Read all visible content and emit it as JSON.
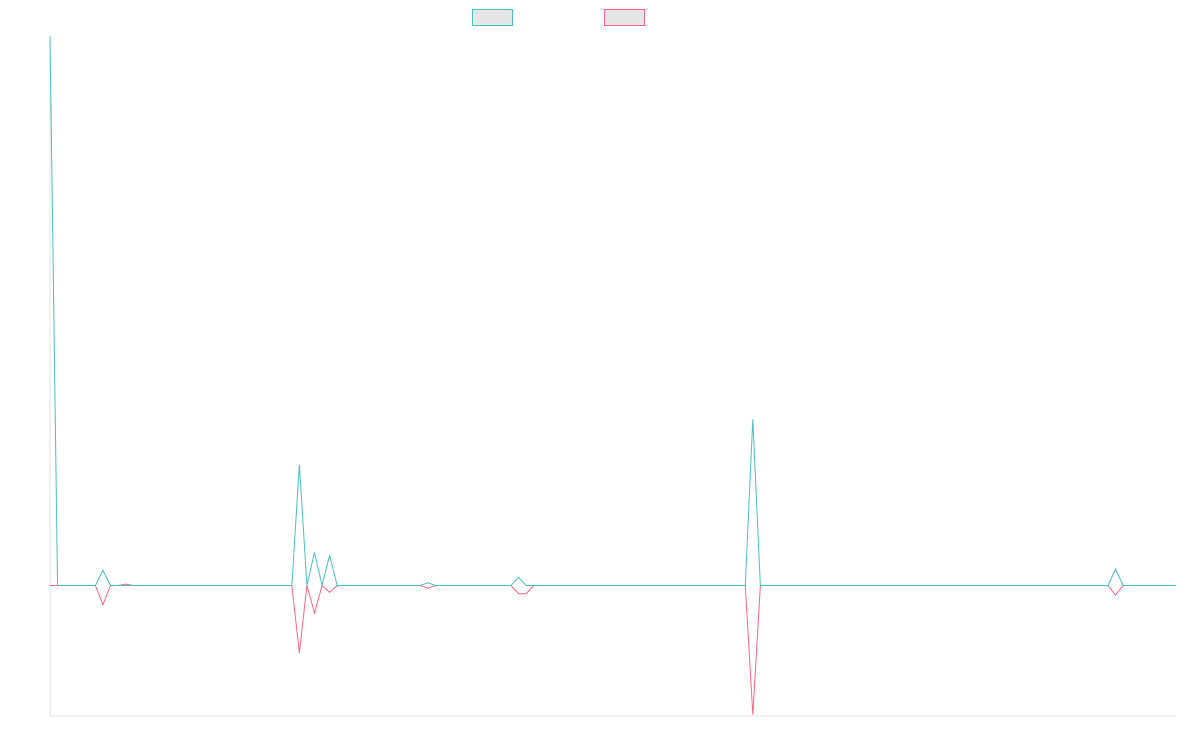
{
  "chart_data": {
    "type": "line",
    "title": "",
    "xlabel": "",
    "ylabel": "",
    "grid": false,
    "legend_position": "top-center",
    "x_count": 150,
    "ylim": [
      -95,
      400
    ],
    "series": [
      {
        "color": "#4bc0c0",
        "values": [
          400,
          0,
          0,
          0,
          0,
          0,
          0,
          11,
          0,
          0,
          0,
          0,
          0,
          0,
          0,
          0,
          0,
          0,
          0,
          0,
          0,
          0,
          0,
          0,
          0,
          0,
          0,
          0,
          0,
          0,
          0,
          0,
          0,
          88,
          0,
          24,
          0,
          22,
          0,
          0,
          0,
          0,
          0,
          0,
          0,
          0,
          0,
          0,
          0,
          0,
          2,
          0,
          0,
          0,
          0,
          0,
          0,
          0,
          0,
          0,
          0,
          0,
          6,
          0,
          0,
          0,
          0,
          0,
          0,
          0,
          0,
          0,
          0,
          0,
          0,
          0,
          0,
          0,
          0,
          0,
          0,
          0,
          0,
          0,
          0,
          0,
          0,
          0,
          0,
          0,
          0,
          0,
          0,
          121,
          0,
          0,
          0,
          0,
          0,
          0,
          0,
          0,
          0,
          0,
          0,
          0,
          0,
          0,
          0,
          0,
          0,
          0,
          0,
          0,
          0,
          0,
          0,
          0,
          0,
          0,
          0,
          0,
          0,
          0,
          0,
          0,
          0,
          0,
          0,
          0,
          0,
          0,
          0,
          0,
          0,
          0,
          0,
          0,
          0,
          0,
          0,
          12,
          0,
          0,
          0,
          0,
          0,
          0,
          0,
          0
        ]
      },
      {
        "color": "#ff6384",
        "values": [
          0,
          0,
          0,
          0,
          0,
          0,
          0,
          -14,
          0,
          0,
          1,
          0,
          0,
          0,
          0,
          0,
          0,
          0,
          0,
          0,
          0,
          0,
          0,
          0,
          0,
          0,
          0,
          0,
          0,
          0,
          0,
          0,
          0,
          -49,
          0,
          -20,
          0,
          -5,
          0,
          0,
          0,
          0,
          0,
          0,
          0,
          0,
          0,
          0,
          0,
          0,
          -2,
          0,
          0,
          0,
          0,
          0,
          0,
          0,
          0,
          0,
          0,
          0,
          -6,
          -6,
          0,
          0,
          0,
          0,
          0,
          0,
          0,
          0,
          0,
          0,
          0,
          0,
          0,
          0,
          0,
          0,
          0,
          0,
          0,
          0,
          0,
          0,
          0,
          0,
          0,
          0,
          0,
          0,
          0,
          -94,
          0,
          0,
          0,
          0,
          0,
          0,
          0,
          0,
          0,
          0,
          0,
          0,
          0,
          0,
          0,
          0,
          0,
          0,
          0,
          0,
          0,
          0,
          0,
          0,
          0,
          0,
          0,
          0,
          0,
          0,
          0,
          0,
          0,
          0,
          0,
          0,
          0,
          0,
          0,
          0,
          0,
          0,
          0,
          0,
          0,
          0,
          0,
          -7,
          0,
          0,
          0,
          0,
          0,
          0,
          0,
          0
        ]
      }
    ]
  }
}
